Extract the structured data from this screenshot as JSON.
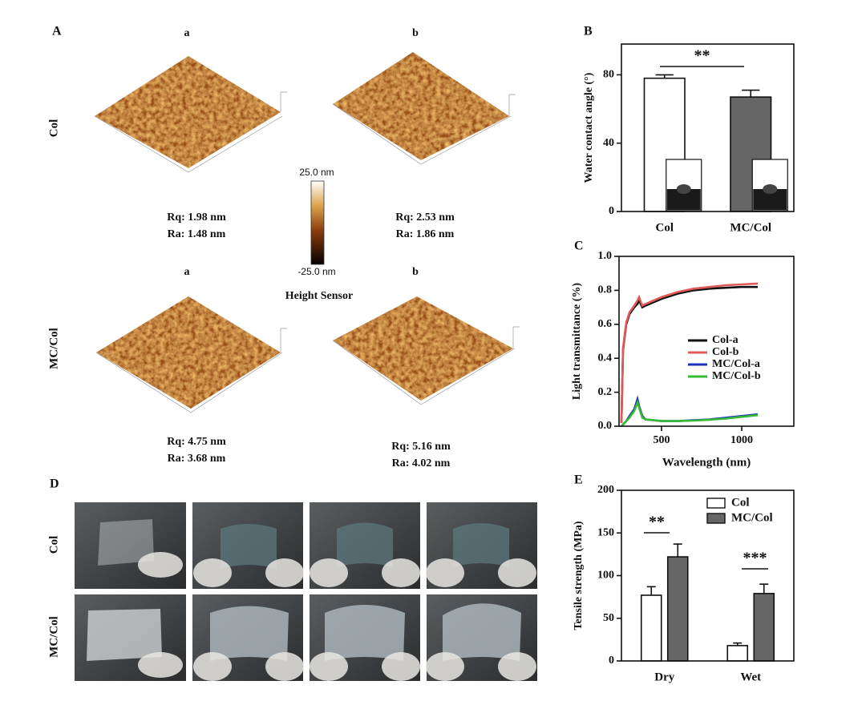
{
  "panel_a": {
    "label": "A",
    "rows": [
      {
        "name": "Col",
        "columns": [
          "a",
          "b"
        ],
        "samples": [
          {
            "rq": "Rq: 1.98 nm",
            "ra": "Ra: 1.48 nm"
          },
          {
            "rq": "Rq: 2.53 nm",
            "ra": "Ra: 1.86 nm"
          }
        ]
      },
      {
        "name": "MC/Col",
        "columns": [
          "a",
          "b"
        ],
        "samples": [
          {
            "rq": "Rq: 4.75 nm",
            "ra": "Ra: 3.68 nm"
          },
          {
            "rq": "Rq: 5.16 nm",
            "ra": "Ra: 4.02 nm"
          }
        ]
      }
    ],
    "colorbar": {
      "max": "25.0 nm",
      "min": "-25.0 nm",
      "title": "Height Sensor"
    }
  },
  "panel_d": {
    "label": "D",
    "rows": [
      "Col",
      "MC/Col"
    ]
  },
  "chart_data": [
    {
      "type": "bar",
      "panel": "B",
      "ylabel": "Water contact angle (°)",
      "categories": [
        "Col",
        "MC/Col"
      ],
      "values": [
        78,
        67
      ],
      "errors": [
        2,
        4
      ],
      "colors": [
        "#ffffff",
        "#666666"
      ],
      "ylim": [
        0,
        98
      ],
      "yticks": [
        0,
        40,
        80
      ],
      "annotations": [
        "**"
      ]
    },
    {
      "type": "line",
      "panel": "C",
      "xlabel": "Wavelength (nm)",
      "ylabel": "Light transmittance (%)",
      "x": [
        250,
        260,
        280,
        300,
        330,
        350,
        360,
        380,
        400,
        500,
        600,
        700,
        800,
        900,
        1000,
        1100
      ],
      "series": [
        {
          "name": "Col-a",
          "color": "#111111",
          "values": [
            0.02,
            0.45,
            0.6,
            0.66,
            0.7,
            0.72,
            0.74,
            0.7,
            0.71,
            0.75,
            0.78,
            0.8,
            0.81,
            0.815,
            0.82,
            0.82
          ]
        },
        {
          "name": "Col-b",
          "color": "#e05a5a",
          "values": [
            0.02,
            0.46,
            0.61,
            0.67,
            0.71,
            0.74,
            0.76,
            0.71,
            0.72,
            0.76,
            0.79,
            0.81,
            0.82,
            0.83,
            0.835,
            0.84
          ]
        },
        {
          "name": "MC/Col-a",
          "color": "#2233bb",
          "values": [
            0.0,
            0.01,
            0.03,
            0.06,
            0.1,
            0.16,
            0.12,
            0.06,
            0.04,
            0.03,
            0.03,
            0.035,
            0.04,
            0.05,
            0.06,
            0.07
          ]
        },
        {
          "name": "MC/Col-b",
          "color": "#33bb33",
          "values": [
            0.0,
            0.01,
            0.03,
            0.05,
            0.09,
            0.14,
            0.11,
            0.05,
            0.04,
            0.03,
            0.03,
            0.033,
            0.038,
            0.045,
            0.055,
            0.065
          ]
        }
      ],
      "xlim": [
        235,
        1325
      ],
      "xticks": [
        500,
        1000
      ],
      "ylim": [
        0,
        1
      ],
      "yticks": [
        {
          "value": 0,
          "label": "0.0"
        },
        0.2,
        0.4,
        0.6,
        0.8,
        {
          "value": 1,
          "label": "1.0"
        }
      ]
    },
    {
      "type": "bar",
      "panel": "E",
      "ylabel": "Tensile strength (MPa)",
      "categories": [
        "Dry",
        "Wet"
      ],
      "series": [
        {
          "name": "Col",
          "color": "#ffffff",
          "values": [
            77,
            18
          ],
          "errors": [
            10,
            3
          ]
        },
        {
          "name": "MC/Col",
          "color": "#666666",
          "values": [
            122,
            79
          ],
          "errors": [
            15,
            11
          ]
        }
      ],
      "ylim": [
        0,
        200
      ],
      "yticks": [
        0,
        50,
        100,
        150,
        200
      ],
      "annotations": [
        "**",
        "***"
      ]
    }
  ]
}
